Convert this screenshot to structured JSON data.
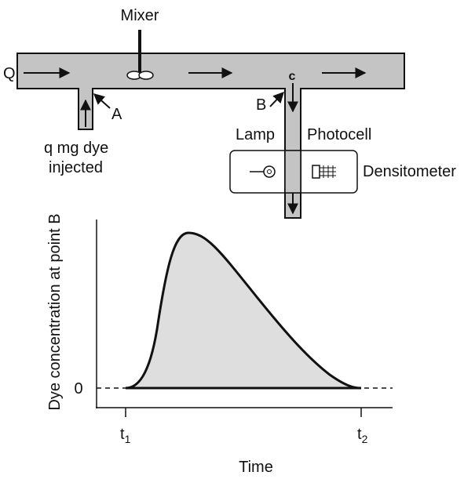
{
  "diagram": {
    "mixer": "Mixer",
    "flow_label": "Q",
    "point_a": "A",
    "point_b": "B",
    "point_c": "c",
    "injection": [
      "q mg dye",
      "injected"
    ],
    "lamp": "Lamp",
    "photocell": "Photocell",
    "densitometer": "Densitometer",
    "graph": {
      "y_label": "Dye concentration at point B",
      "zero": "0",
      "t1": {
        "base": "t",
        "sub": "1"
      },
      "t2": {
        "base": "t",
        "sub": "2"
      },
      "x_label": "Time"
    }
  }
}
